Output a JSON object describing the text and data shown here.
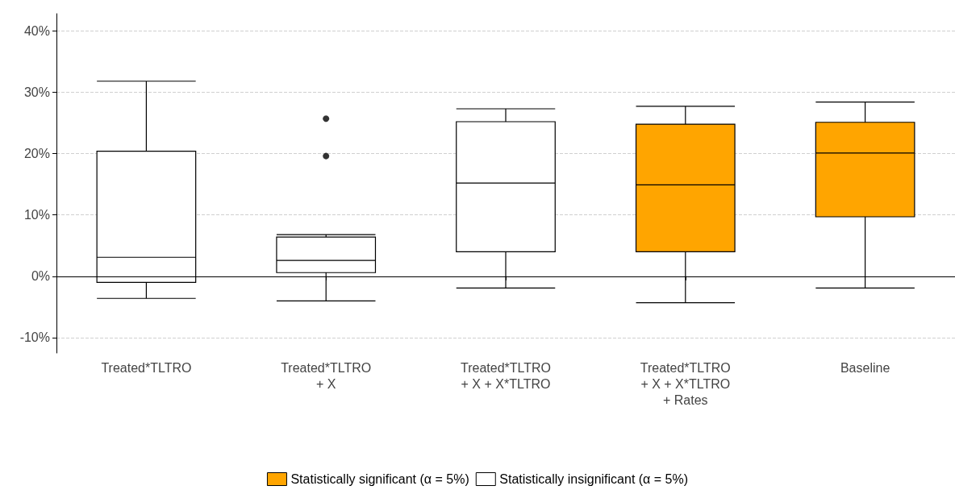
{
  "chart_data": {
    "type": "box",
    "categories": [
      "Treated*TLTRO",
      "Treated*TLTRO\n+ X",
      "Treated*TLTRO\n+ X + X*TLTRO",
      "Treated*TLTRO\n+ X + X*TLTRO\n+ Rates",
      "Baseline"
    ],
    "series": [
      {
        "name": "Statistically significant (α = 5%)",
        "color": "#ffa500",
        "boxes": [
          null,
          null,
          null,
          {
            "low": -4.3,
            "q1": 4.0,
            "median": 14.9,
            "q3": 24.8,
            "high": 27.7
          },
          {
            "low": -1.9,
            "q1": 9.7,
            "median": 20.1,
            "q3": 25.1,
            "high": 28.4
          }
        ]
      },
      {
        "name": "Statistically insignificant (α = 5%)",
        "color": "#ffffff",
        "boxes": [
          {
            "low": -3.6,
            "q1": -1.0,
            "median": 3.1,
            "q3": 20.4,
            "high": 31.8
          },
          {
            "low": -4.0,
            "q1": 0.6,
            "median": 2.6,
            "q3": 6.4,
            "high": 6.8,
            "outliers": [
              19.6,
              25.7
            ]
          },
          {
            "low": -1.9,
            "q1": 4.0,
            "median": 15.2,
            "q3": 25.2,
            "high": 27.3
          },
          null,
          null
        ]
      }
    ],
    "ylim": [
      -12.5,
      42.8
    ],
    "yticks": [
      {
        "value": -10,
        "label": "-10%"
      },
      {
        "value": 0,
        "label": "0%"
      },
      {
        "value": 10,
        "label": "10%"
      },
      {
        "value": 20,
        "label": "20%"
      },
      {
        "value": 30,
        "label": "30%"
      },
      {
        "value": 40,
        "label": "40%"
      }
    ],
    "ref_lines": [
      {
        "axis": "y",
        "value": 0,
        "color": "#000000"
      }
    ],
    "grid": "y",
    "legend": "bottom"
  }
}
